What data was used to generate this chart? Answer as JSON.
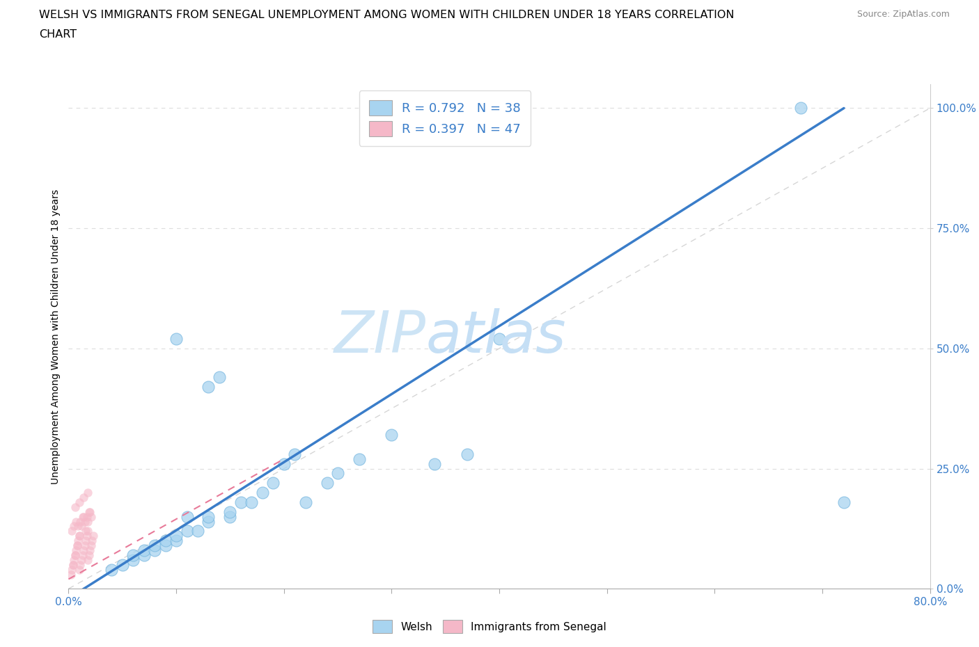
{
  "title_line1": "WELSH VS IMMIGRANTS FROM SENEGAL UNEMPLOYMENT AMONG WOMEN WITH CHILDREN UNDER 18 YEARS CORRELATION",
  "title_line2": "CHART",
  "source": "Source: ZipAtlas.com",
  "ylabel": "Unemployment Among Women with Children Under 18 years",
  "xlim": [
    0.0,
    0.8
  ],
  "ylim": [
    0.0,
    1.05
  ],
  "xticks": [
    0.0,
    0.1,
    0.2,
    0.3,
    0.4,
    0.5,
    0.6,
    0.7,
    0.8
  ],
  "xticklabels": [
    "0.0%",
    "",
    "",
    "",
    "",
    "",
    "",
    "",
    "80.0%"
  ],
  "yticks": [
    0.0,
    0.25,
    0.5,
    0.75,
    1.0
  ],
  "yticklabels": [
    "0.0%",
    "25.0%",
    "50.0%",
    "75.0%",
    "100.0%"
  ],
  "welsh_color": "#a8d4f0",
  "senegal_color": "#f5b8c8",
  "welsh_line_color": "#3a7dc9",
  "senegal_line_color": "#e87a99",
  "ref_line_color": "#cccccc",
  "welsh_R": 0.792,
  "welsh_N": 38,
  "senegal_R": 0.397,
  "senegal_N": 47,
  "legend_color": "#3a7dc9",
  "watermark_zip_color": "#cde4f5",
  "watermark_atlas_color": "#c5dff5",
  "welsh_x": [
    0.04,
    0.05,
    0.06,
    0.06,
    0.07,
    0.07,
    0.08,
    0.08,
    0.09,
    0.09,
    0.1,
    0.1,
    0.11,
    0.11,
    0.12,
    0.13,
    0.13,
    0.14,
    0.15,
    0.15,
    0.16,
    0.17,
    0.18,
    0.19,
    0.2,
    0.21,
    0.22,
    0.24,
    0.25,
    0.27,
    0.3,
    0.34,
    0.37,
    0.4,
    0.68,
    0.72,
    0.1,
    0.13
  ],
  "welsh_y": [
    0.04,
    0.05,
    0.06,
    0.07,
    0.07,
    0.08,
    0.08,
    0.09,
    0.09,
    0.1,
    0.1,
    0.11,
    0.12,
    0.15,
    0.12,
    0.42,
    0.14,
    0.44,
    0.15,
    0.16,
    0.18,
    0.18,
    0.2,
    0.22,
    0.26,
    0.28,
    0.18,
    0.22,
    0.24,
    0.27,
    0.32,
    0.26,
    0.28,
    0.52,
    1.0,
    0.18,
    0.52,
    0.15
  ],
  "senegal_x": [
    0.002,
    0.003,
    0.004,
    0.005,
    0.006,
    0.007,
    0.008,
    0.009,
    0.01,
    0.01,
    0.011,
    0.012,
    0.013,
    0.014,
    0.015,
    0.016,
    0.017,
    0.018,
    0.018,
    0.019,
    0.02,
    0.021,
    0.022,
    0.023,
    0.003,
    0.005,
    0.007,
    0.009,
    0.011,
    0.013,
    0.015,
    0.017,
    0.019,
    0.021,
    0.004,
    0.006,
    0.008,
    0.01,
    0.012,
    0.014,
    0.016,
    0.018,
    0.02,
    0.006,
    0.01,
    0.014,
    0.018
  ],
  "senegal_y": [
    0.03,
    0.04,
    0.05,
    0.06,
    0.07,
    0.08,
    0.09,
    0.1,
    0.11,
    0.04,
    0.05,
    0.06,
    0.07,
    0.08,
    0.09,
    0.1,
    0.11,
    0.12,
    0.06,
    0.07,
    0.08,
    0.09,
    0.1,
    0.11,
    0.12,
    0.13,
    0.14,
    0.13,
    0.14,
    0.15,
    0.14,
    0.15,
    0.16,
    0.15,
    0.05,
    0.07,
    0.09,
    0.11,
    0.13,
    0.15,
    0.12,
    0.14,
    0.16,
    0.17,
    0.18,
    0.19,
    0.2
  ]
}
